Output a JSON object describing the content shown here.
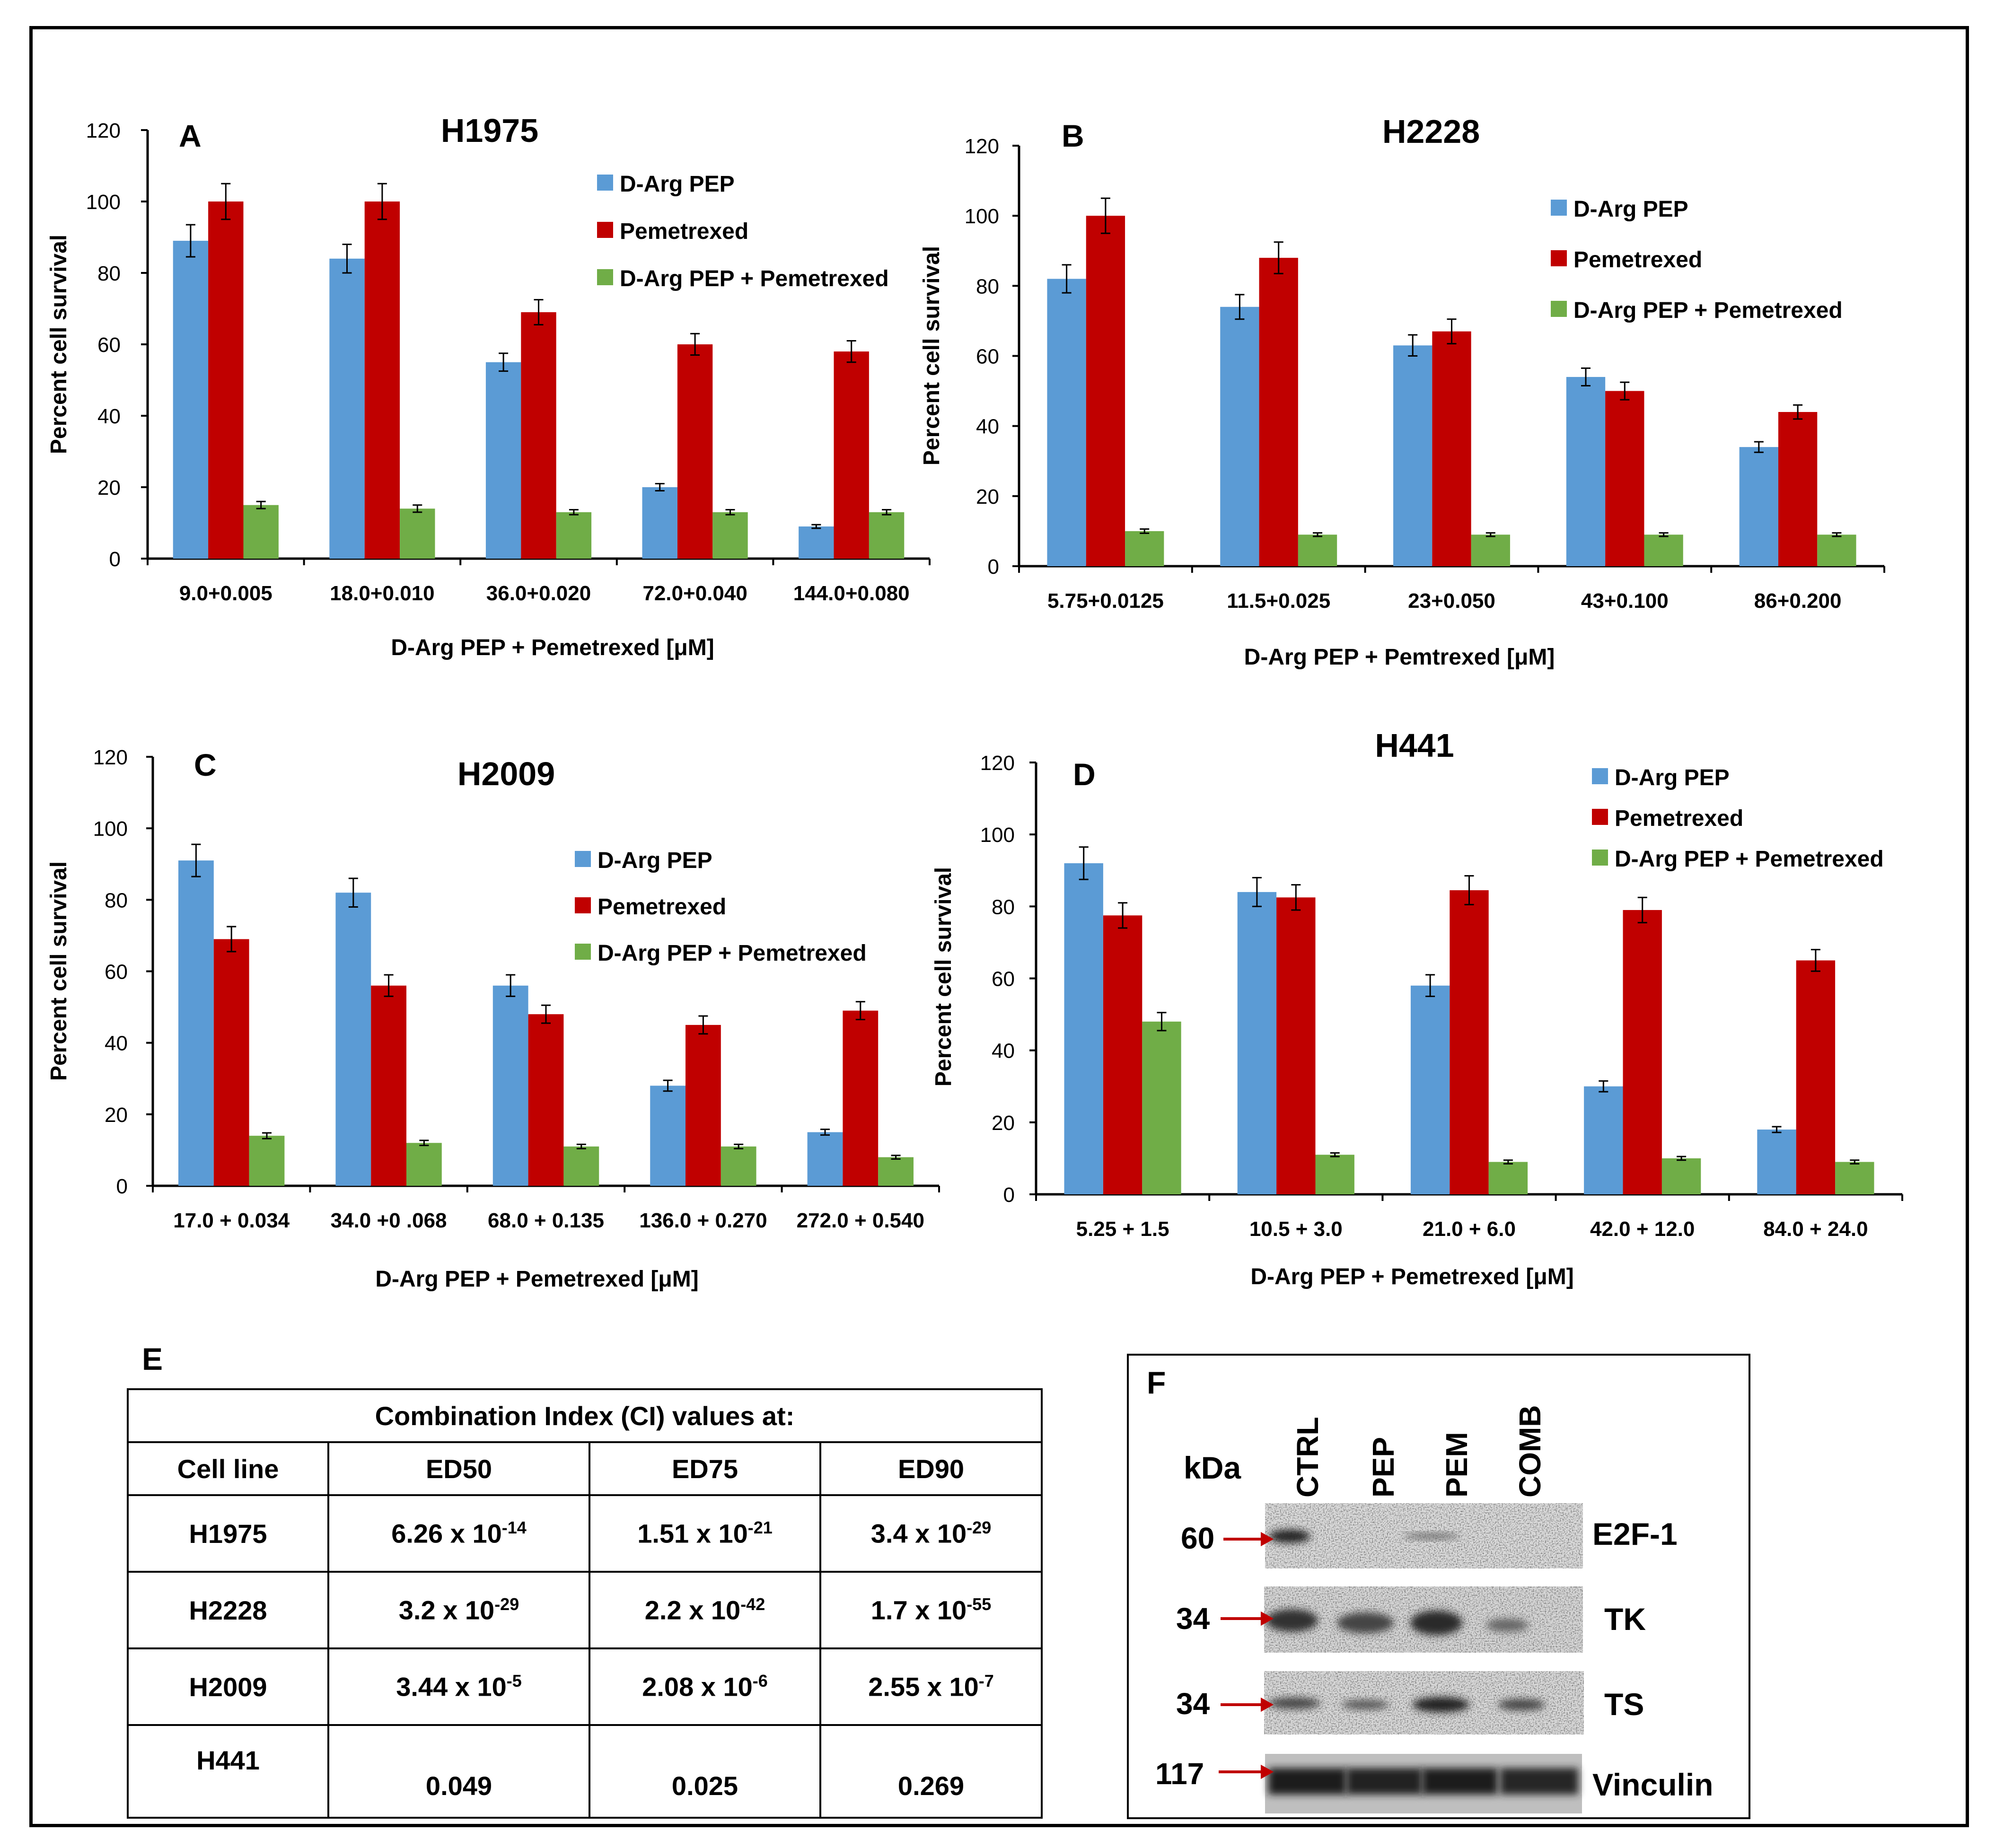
{
  "figure": {
    "colors": {
      "blue": "#5B9BD5",
      "red": "#C00000",
      "green": "#70AD47"
    },
    "panels": [
      {
        "letter": "A",
        "title": "H1975",
        "chart_data": {
          "type": "bar",
          "title": "H1975",
          "xlabel": "D-Arg PEP + Pemetrexed [μM]",
          "ylabel": "Percent  cell survival",
          "ylim": [
            0,
            120
          ],
          "yticks": [
            0,
            20,
            40,
            60,
            80,
            100,
            120
          ],
          "categories": [
            "9.0+0.005",
            "18.0+0.010",
            "36.0+0.020",
            "72.0+0.040",
            "144.0+0.080"
          ],
          "series": [
            {
              "name": "D-Arg PEP",
              "values": [
                89,
                84,
                55,
                20,
                9
              ],
              "errors": [
                4.5,
                4,
                2.5,
                1,
                0.5
              ]
            },
            {
              "name": "Pemetrexed",
              "values": [
                100,
                100,
                69,
                60,
                58
              ],
              "errors": [
                5,
                5,
                3.5,
                3,
                3
              ]
            },
            {
              "name": "D-Arg PEP + Pemetrexed",
              "values": [
                15,
                14,
                13,
                13,
                13
              ],
              "errors": [
                1,
                1,
                0.7,
                0.7,
                0.7
              ]
            }
          ],
          "legend_position": "top-right"
        }
      },
      {
        "letter": "B",
        "title": "H2228",
        "chart_data": {
          "type": "bar",
          "title": "H2228",
          "xlabel": "D-Arg PEP + Pemtrexed [μM]",
          "ylabel": "Percent cell survival",
          "ylim": [
            0,
            120
          ],
          "yticks": [
            0,
            20,
            40,
            60,
            80,
            100,
            120
          ],
          "categories": [
            "5.75+0.0125",
            "11.5+0.025",
            "23+0.050",
            "43+0.100",
            "86+0.200"
          ],
          "series": [
            {
              "name": "D-Arg PEP",
              "values": [
                82,
                74,
                63,
                54,
                34
              ],
              "errors": [
                4,
                3.5,
                3,
                2.5,
                1.5
              ]
            },
            {
              "name": "Pemetrexed",
              "values": [
                100,
                88,
                67,
                50,
                44
              ],
              "errors": [
                5,
                4.5,
                3.5,
                2.5,
                2
              ]
            },
            {
              "name": "D-Arg PEP + Pemetrexed",
              "values": [
                10,
                9,
                9,
                9,
                9
              ],
              "errors": [
                0.6,
                0.5,
                0.5,
                0.5,
                0.5
              ]
            }
          ],
          "legend_position": "top-right"
        }
      },
      {
        "letter": "C",
        "title": "H2009",
        "chart_data": {
          "type": "bar",
          "title": "H2009",
          "xlabel": "D-Arg PEP + Pemetrexed [μM]",
          "ylabel": "Percent cell survival",
          "ylim": [
            0,
            120
          ],
          "yticks": [
            0,
            20,
            40,
            60,
            80,
            100,
            120
          ],
          "categories": [
            "17.0 + 0.034",
            "34.0 +0 .068",
            "68.0 + 0.135",
            "136.0 + 0.270",
            "272.0 + 0.540"
          ],
          "series": [
            {
              "name": "D-Arg PEP",
              "values": [
                91,
                82,
                56,
                28,
                15
              ],
              "errors": [
                4.5,
                4,
                3,
                1.5,
                0.8
              ]
            },
            {
              "name": "Pemetrexed",
              "values": [
                69,
                56,
                48,
                45,
                49
              ],
              "errors": [
                3.5,
                3,
                2.5,
                2.5,
                2.5
              ]
            },
            {
              "name": "D-Arg PEP + Pemetrexed",
              "values": [
                14,
                12,
                11,
                11,
                8
              ],
              "errors": [
                0.8,
                0.7,
                0.6,
                0.6,
                0.5
              ]
            }
          ],
          "legend_position": "top-right"
        }
      },
      {
        "letter": "D",
        "title": "H441",
        "chart_data": {
          "type": "bar",
          "title": "H441",
          "xlabel": "D-Arg PEP + Pemetrexed [μM]",
          "ylabel": "Percent cell survival",
          "ylim": [
            0,
            120
          ],
          "yticks": [
            0,
            20,
            40,
            60,
            80,
            100,
            120
          ],
          "categories": [
            "5.25 + 1.5",
            "10.5 + 3.0",
            "21.0 + 6.0",
            "42.0 + 12.0",
            "84.0 + 24.0"
          ],
          "series": [
            {
              "name": "D-Arg  PEP",
              "values": [
                92,
                84,
                58,
                30,
                18
              ],
              "errors": [
                4.5,
                4,
                3,
                1.5,
                0.8
              ]
            },
            {
              "name": "Pemetrexed",
              "values": [
                77.5,
                82.5,
                84.5,
                79,
                65
              ],
              "errors": [
                3.5,
                3.5,
                4,
                3.5,
                3
              ]
            },
            {
              "name": "D-Arg  PEP + Pemetrexed",
              "values": [
                48,
                11,
                9,
                10,
                9
              ],
              "errors": [
                2.5,
                0.5,
                0.5,
                0.5,
                0.5
              ]
            }
          ],
          "legend_position": "top-right"
        }
      }
    ],
    "table": {
      "letter": "E",
      "caption": "Combination Index (CI) values at:",
      "headers": [
        "Cell line",
        "ED50",
        "ED75",
        "ED90"
      ],
      "rows": [
        {
          "cell": "H1975",
          "v": [
            {
              "m": "6.26 x 10",
              "e": "-14"
            },
            {
              "m": "1.51 x 10",
              "e": "-21"
            },
            {
              "m": "3.4 x 10",
              "e": "-29"
            }
          ]
        },
        {
          "cell": "H2228",
          "v": [
            {
              "m": "3.2 x 10",
              "e": "-29"
            },
            {
              "m": "2.2 x 10",
              "e": "-42"
            },
            {
              "m": "1.7 x 10",
              "e": "-55"
            }
          ]
        },
        {
          "cell": "H2009",
          "v": [
            {
              "m": "3.44 x 10",
              "e": "-5"
            },
            {
              "m": "2.08 x 10",
              "e": "-6"
            },
            {
              "m": "2.55 x 10",
              "e": "-7"
            }
          ]
        },
        {
          "cell": "H441",
          "v": [
            {
              "m": "0.049",
              "e": ""
            },
            {
              "m": "0.025",
              "e": ""
            },
            {
              "m": "0.269",
              "e": ""
            }
          ]
        }
      ]
    },
    "blot": {
      "letter": "F",
      "kda_label": "kDa",
      "lanes": [
        "CTRL",
        "PEP",
        "PEM",
        "COMB"
      ],
      "bands": [
        {
          "kda": "60",
          "name": "E2F-1"
        },
        {
          "kda": "34",
          "name": "TK"
        },
        {
          "kda": "34",
          "name": "TS"
        },
        {
          "kda": "117",
          "name": "Vinculin"
        }
      ]
    }
  }
}
